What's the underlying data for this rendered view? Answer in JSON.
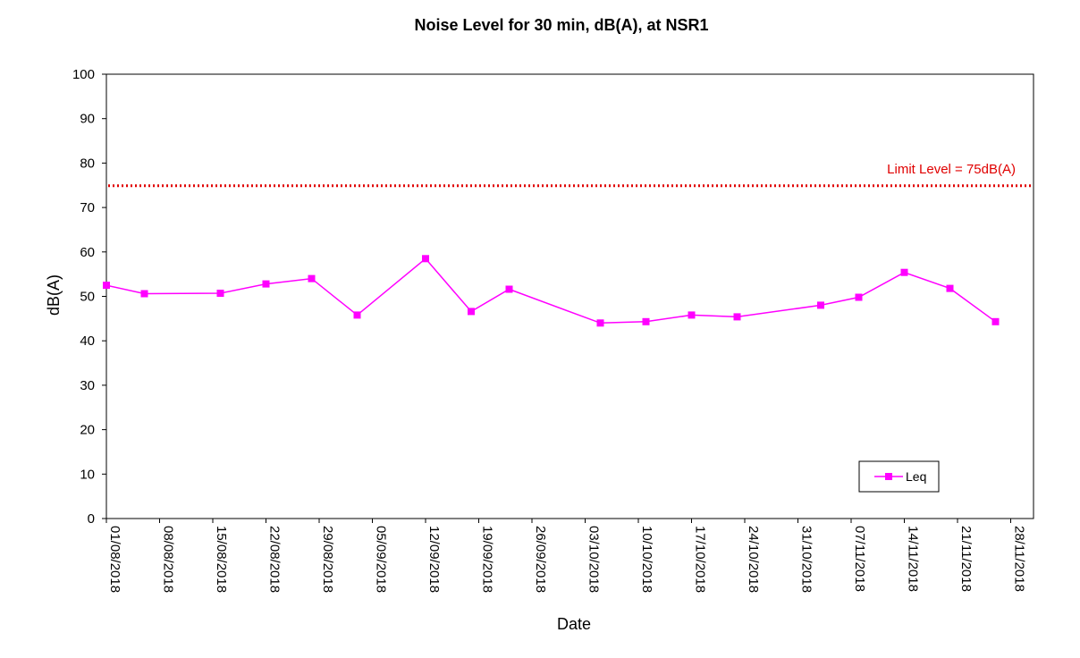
{
  "chart_data": {
    "type": "line",
    "title": "Noise Level for 30 min, dB(A), at NSR1",
    "xlabel": "Date",
    "ylabel": "dB(A)",
    "ylim": [
      0,
      100
    ],
    "yticks": [
      0,
      10,
      20,
      30,
      40,
      50,
      60,
      70,
      80,
      90,
      100
    ],
    "xlim": [
      "2018-08-01",
      "2018-12-01"
    ],
    "xtick_labels": [
      "01/08/2018",
      "08/08/2018",
      "15/08/2018",
      "22/08/2018",
      "29/08/2018",
      "05/09/2018",
      "12/09/2018",
      "19/09/2018",
      "26/09/2018",
      "03/10/2018",
      "10/10/2018",
      "17/10/2018",
      "24/10/2018",
      "31/10/2018",
      "07/11/2018",
      "14/11/2018",
      "21/11/2018",
      "28/11/2018"
    ],
    "grid": false,
    "legend_position": "bottom-right",
    "series": [
      {
        "name": "Leq",
        "color": "#ff00ff",
        "marker": "square",
        "x": [
          "2018-08-01",
          "2018-08-06",
          "2018-08-16",
          "2018-08-22",
          "2018-08-28",
          "2018-09-03",
          "2018-09-12",
          "2018-09-18",
          "2018-09-23",
          "2018-10-05",
          "2018-10-11",
          "2018-10-17",
          "2018-10-23",
          "2018-11-03",
          "2018-11-08",
          "2018-11-14",
          "2018-11-20",
          "2018-11-26"
        ],
        "values": [
          52.5,
          50.6,
          50.7,
          52.8,
          54,
          45.8,
          58.5,
          46.6,
          51.6,
          44,
          44.3,
          45.8,
          45.4,
          48,
          49.8,
          55.4,
          51.8,
          44.3
        ]
      }
    ],
    "reference_lines": [
      {
        "label": "Limit Level = 75dB(A)",
        "y": 75,
        "color": "#e00000",
        "style": "dotted"
      }
    ]
  }
}
